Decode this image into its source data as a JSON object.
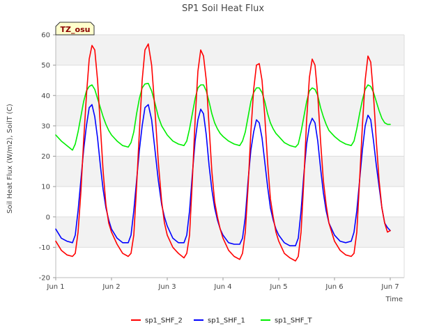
{
  "chart_data": {
    "type": "line",
    "title": "SP1 Soil Heat Flux",
    "xlabel": "Time",
    "ylabel": "Soil Heat Flux (W/m2), SoilT (C)",
    "badge": "TZ_osu",
    "xlim": [
      1,
      7.25
    ],
    "ylim": [
      -20,
      60
    ],
    "yticks": [
      -20,
      -10,
      0,
      10,
      20,
      30,
      40,
      50,
      60
    ],
    "xticks": [
      {
        "value": 1,
        "label": "Jun 1"
      },
      {
        "value": 2,
        "label": "Jun 2"
      },
      {
        "value": 3,
        "label": "Jun 3"
      },
      {
        "value": 4,
        "label": "Jun 4"
      },
      {
        "value": 5,
        "label": "Jun 5"
      },
      {
        "value": 6,
        "label": "Jun 6"
      },
      {
        "value": 7,
        "label": "Jun 7"
      }
    ],
    "grid": true,
    "legend_position": "bottom",
    "series": [
      {
        "name": "sp1_SHF_2",
        "color": "#ff0000",
        "x": [
          1.0,
          1.1,
          1.2,
          1.3,
          1.35,
          1.4,
          1.45,
          1.5,
          1.55,
          1.6,
          1.65,
          1.7,
          1.75,
          1.8,
          1.85,
          1.9,
          1.95,
          2.0,
          2.1,
          2.2,
          2.3,
          2.35,
          2.4,
          2.45,
          2.5,
          2.55,
          2.6,
          2.66,
          2.72,
          2.78,
          2.84,
          2.9,
          2.95,
          3.0,
          3.1,
          3.2,
          3.3,
          3.35,
          3.4,
          3.45,
          3.5,
          3.55,
          3.6,
          3.65,
          3.7,
          3.75,
          3.8,
          3.85,
          3.9,
          3.95,
          4.0,
          4.1,
          4.2,
          4.3,
          4.35,
          4.4,
          4.45,
          4.5,
          4.55,
          4.6,
          4.65,
          4.7,
          4.75,
          4.8,
          4.85,
          4.9,
          4.95,
          5.0,
          5.1,
          5.2,
          5.3,
          5.35,
          5.4,
          5.45,
          5.5,
          5.55,
          5.6,
          5.65,
          5.7,
          5.75,
          5.8,
          5.85,
          5.9,
          5.95,
          6.0,
          6.1,
          6.2,
          6.3,
          6.35,
          6.4,
          6.45,
          6.5,
          6.55,
          6.6,
          6.65,
          6.7,
          6.75,
          6.8,
          6.85,
          6.9,
          6.95,
          7.0
        ],
        "y": [
          -8,
          -11,
          -12.5,
          -13,
          -12,
          -5,
          8,
          25,
          40,
          52,
          56.5,
          55,
          45,
          30,
          15,
          4,
          -2,
          -5,
          -9,
          -12,
          -13,
          -12,
          -6,
          10,
          28,
          45,
          55,
          57,
          50,
          35,
          18,
          5,
          -2,
          -6,
          -10,
          -12,
          -13.5,
          -12,
          -6,
          12,
          32,
          48,
          55,
          53,
          45,
          30,
          15,
          5,
          0,
          -4,
          -7,
          -11,
          -13,
          -14,
          -12,
          -5,
          10,
          28,
          42,
          50,
          50.5,
          45,
          33,
          18,
          6,
          0,
          -5,
          -8,
          -12,
          -13.5,
          -14.5,
          -13,
          -5,
          12,
          32,
          46,
          52,
          50,
          40,
          25,
          12,
          4,
          -2,
          -5,
          -8,
          -11,
          -12.5,
          -13,
          -12,
          -5,
          12,
          30,
          45,
          53,
          51,
          40,
          25,
          12,
          3,
          -2,
          -5,
          -4.5
        ]
      },
      {
        "name": "sp1_SHF_1",
        "color": "#0000ff",
        "x": [
          1.0,
          1.1,
          1.2,
          1.3,
          1.35,
          1.4,
          1.45,
          1.5,
          1.55,
          1.6,
          1.65,
          1.7,
          1.75,
          1.8,
          1.85,
          1.9,
          1.95,
          2.0,
          2.1,
          2.2,
          2.3,
          2.35,
          2.4,
          2.45,
          2.5,
          2.55,
          2.6,
          2.66,
          2.72,
          2.78,
          2.84,
          2.9,
          2.95,
          3.0,
          3.1,
          3.2,
          3.3,
          3.35,
          3.4,
          3.45,
          3.5,
          3.55,
          3.6,
          3.65,
          3.7,
          3.75,
          3.8,
          3.85,
          3.9,
          3.95,
          4.0,
          4.1,
          4.2,
          4.3,
          4.35,
          4.4,
          4.45,
          4.5,
          4.55,
          4.6,
          4.65,
          4.7,
          4.75,
          4.8,
          4.85,
          4.9,
          4.95,
          5.0,
          5.1,
          5.2,
          5.3,
          5.35,
          5.4,
          5.45,
          5.5,
          5.55,
          5.6,
          5.65,
          5.7,
          5.75,
          5.8,
          5.85,
          5.9,
          5.95,
          6.0,
          6.1,
          6.2,
          6.3,
          6.35,
          6.4,
          6.45,
          6.5,
          6.55,
          6.6,
          6.65,
          6.7,
          6.75,
          6.8,
          6.85,
          6.9,
          6.95,
          7.0
        ],
        "y": [
          -4,
          -7,
          -8,
          -8.5,
          -6,
          2,
          12,
          22,
          30,
          36,
          37,
          33,
          26,
          17,
          9,
          3,
          -1,
          -4,
          -7,
          -8.5,
          -8.5,
          -6,
          2,
          12,
          22,
          30,
          36,
          37,
          32,
          22,
          12,
          4,
          0,
          -3,
          -7,
          -8.5,
          -8.5,
          -6,
          2,
          14,
          25,
          32,
          35.5,
          34,
          27,
          17,
          9,
          3,
          -1,
          -4,
          -6,
          -8.5,
          -9,
          -9,
          -7,
          0,
          12,
          22,
          28,
          32,
          31,
          26,
          18,
          10,
          3,
          -1,
          -4,
          -6,
          -8.5,
          -9.5,
          -9.5,
          -7,
          2,
          14,
          24,
          30,
          32.5,
          31,
          25,
          16,
          8,
          2,
          -2,
          -4,
          -6,
          -8,
          -8.5,
          -8,
          -5,
          2,
          12,
          22,
          30,
          33.5,
          32,
          25,
          17,
          10,
          3,
          -2,
          -3.5,
          -4.5
        ]
      },
      {
        "name": "sp1_SHF_T",
        "color": "#00ee00",
        "x": [
          1.0,
          1.1,
          1.2,
          1.3,
          1.35,
          1.4,
          1.45,
          1.5,
          1.55,
          1.6,
          1.65,
          1.7,
          1.75,
          1.8,
          1.85,
          1.9,
          1.95,
          2.0,
          2.1,
          2.2,
          2.3,
          2.35,
          2.4,
          2.45,
          2.5,
          2.55,
          2.6,
          2.66,
          2.72,
          2.78,
          2.84,
          2.9,
          2.95,
          3.0,
          3.1,
          3.2,
          3.3,
          3.35,
          3.4,
          3.45,
          3.5,
          3.55,
          3.6,
          3.65,
          3.7,
          3.75,
          3.8,
          3.85,
          3.9,
          3.95,
          4.0,
          4.1,
          4.2,
          4.3,
          4.35,
          4.4,
          4.45,
          4.5,
          4.55,
          4.6,
          4.65,
          4.7,
          4.75,
          4.8,
          4.85,
          4.9,
          4.95,
          5.0,
          5.1,
          5.2,
          5.3,
          5.35,
          5.4,
          5.45,
          5.5,
          5.55,
          5.6,
          5.65,
          5.7,
          5.75,
          5.8,
          5.85,
          5.9,
          5.95,
          6.0,
          6.1,
          6.2,
          6.3,
          6.35,
          6.4,
          6.45,
          6.5,
          6.55,
          6.6,
          6.65,
          6.7,
          6.75,
          6.8,
          6.85,
          6.9,
          6.95,
          7.0
        ],
        "y": [
          27,
          25,
          23.5,
          22,
          24,
          28,
          33,
          38,
          41.5,
          43,
          43.5,
          42,
          39,
          36,
          33,
          30.5,
          28.5,
          27,
          25,
          23.5,
          23,
          24.5,
          28,
          34,
          39,
          42.5,
          43.8,
          44,
          41.5,
          37.5,
          33,
          30,
          28.5,
          27,
          25,
          24,
          23.5,
          25,
          29,
          34,
          39,
          42.5,
          43.5,
          43.5,
          41.5,
          38,
          34,
          31,
          29,
          27.5,
          26.5,
          25,
          24,
          23.5,
          25,
          28,
          33,
          38,
          41,
          42.5,
          42.5,
          41,
          38,
          34,
          31,
          29,
          27.5,
          26.5,
          24.5,
          23.5,
          23,
          24,
          28,
          33,
          38,
          41.5,
          42.5,
          42,
          40,
          36,
          33,
          30.5,
          28.5,
          27.5,
          26.5,
          25,
          24,
          23.5,
          25,
          29,
          34,
          38.5,
          42,
          43.5,
          43,
          41,
          38,
          35,
          32.5,
          31,
          30.5,
          30.5
        ]
      }
    ]
  }
}
